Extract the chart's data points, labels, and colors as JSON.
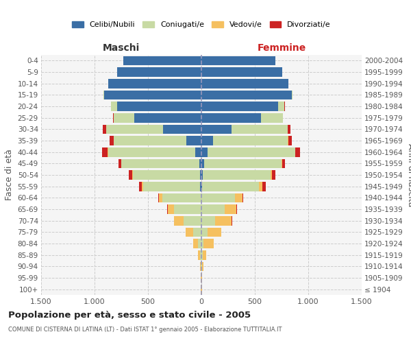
{
  "age_groups": [
    "100+",
    "95-99",
    "90-94",
    "85-89",
    "80-84",
    "75-79",
    "70-74",
    "65-69",
    "60-64",
    "55-59",
    "50-54",
    "45-49",
    "40-44",
    "35-39",
    "30-34",
    "25-29",
    "20-24",
    "15-19",
    "10-14",
    "5-9",
    "0-4"
  ],
  "birth_years": [
    "≤ 1904",
    "1905-1909",
    "1910-1914",
    "1915-1919",
    "1920-1924",
    "1925-1929",
    "1930-1934",
    "1935-1939",
    "1940-1944",
    "1945-1949",
    "1950-1954",
    "1955-1959",
    "1960-1964",
    "1965-1969",
    "1970-1974",
    "1975-1979",
    "1980-1984",
    "1985-1989",
    "1990-1994",
    "1995-1999",
    "2000-2004"
  ],
  "male": {
    "celibi": [
      0,
      0,
      0,
      0,
      0,
      0,
      0,
      0,
      0,
      10,
      15,
      20,
      55,
      140,
      360,
      630,
      790,
      910,
      870,
      790,
      730
    ],
    "coniugati": [
      2,
      3,
      8,
      15,
      30,
      80,
      165,
      255,
      365,
      535,
      625,
      730,
      820,
      680,
      530,
      190,
      55,
      8,
      0,
      0,
      0
    ],
    "vedovi": [
      2,
      3,
      8,
      20,
      45,
      65,
      90,
      60,
      30,
      10,
      5,
      3,
      2,
      2,
      2,
      1,
      1,
      0,
      0,
      0,
      0
    ],
    "divorziati": [
      0,
      0,
      0,
      0,
      0,
      1,
      3,
      5,
      8,
      30,
      35,
      25,
      50,
      35,
      30,
      5,
      3,
      0,
      0,
      0,
      0
    ]
  },
  "female": {
    "nubili": [
      0,
      0,
      0,
      0,
      0,
      0,
      0,
      0,
      0,
      5,
      10,
      25,
      60,
      110,
      285,
      555,
      715,
      845,
      815,
      755,
      695
    ],
    "coniugate": [
      2,
      2,
      5,
      10,
      20,
      60,
      130,
      215,
      315,
      535,
      635,
      725,
      815,
      700,
      520,
      205,
      60,
      8,
      0,
      0,
      0
    ],
    "vedove": [
      3,
      5,
      15,
      35,
      95,
      125,
      155,
      115,
      70,
      30,
      15,
      5,
      3,
      2,
      2,
      1,
      1,
      0,
      0,
      0,
      0
    ],
    "divorziate": [
      0,
      0,
      0,
      0,
      0,
      1,
      2,
      4,
      8,
      30,
      30,
      25,
      45,
      35,
      25,
      5,
      3,
      0,
      0,
      0,
      0
    ]
  },
  "colors": {
    "celibi": "#3a6ea5",
    "coniugati": "#c8daa4",
    "vedovi": "#f5c060",
    "divorziati": "#cc2222"
  },
  "xlim": 1500,
  "title": "Popolazione per età, sesso e stato civile - 2005",
  "subtitle": "COMUNE DI CISTERNA DI LATINA (LT) - Dati ISTAT 1° gennaio 2005 - Elaborazione TUTTITALIA.IT",
  "xlabel_left": "Maschi",
  "xlabel_right": "Femmine",
  "ylabel_left": "Fasce di età",
  "ylabel_right": "Anni di nascita",
  "bg_color": "#ffffff",
  "plot_bg_color": "#f5f5f5",
  "grid_color": "#cccccc",
  "legend_labels": [
    "Celibi/Nubili",
    "Coniugati/e",
    "Vedovi/e",
    "Divorziati/e"
  ]
}
